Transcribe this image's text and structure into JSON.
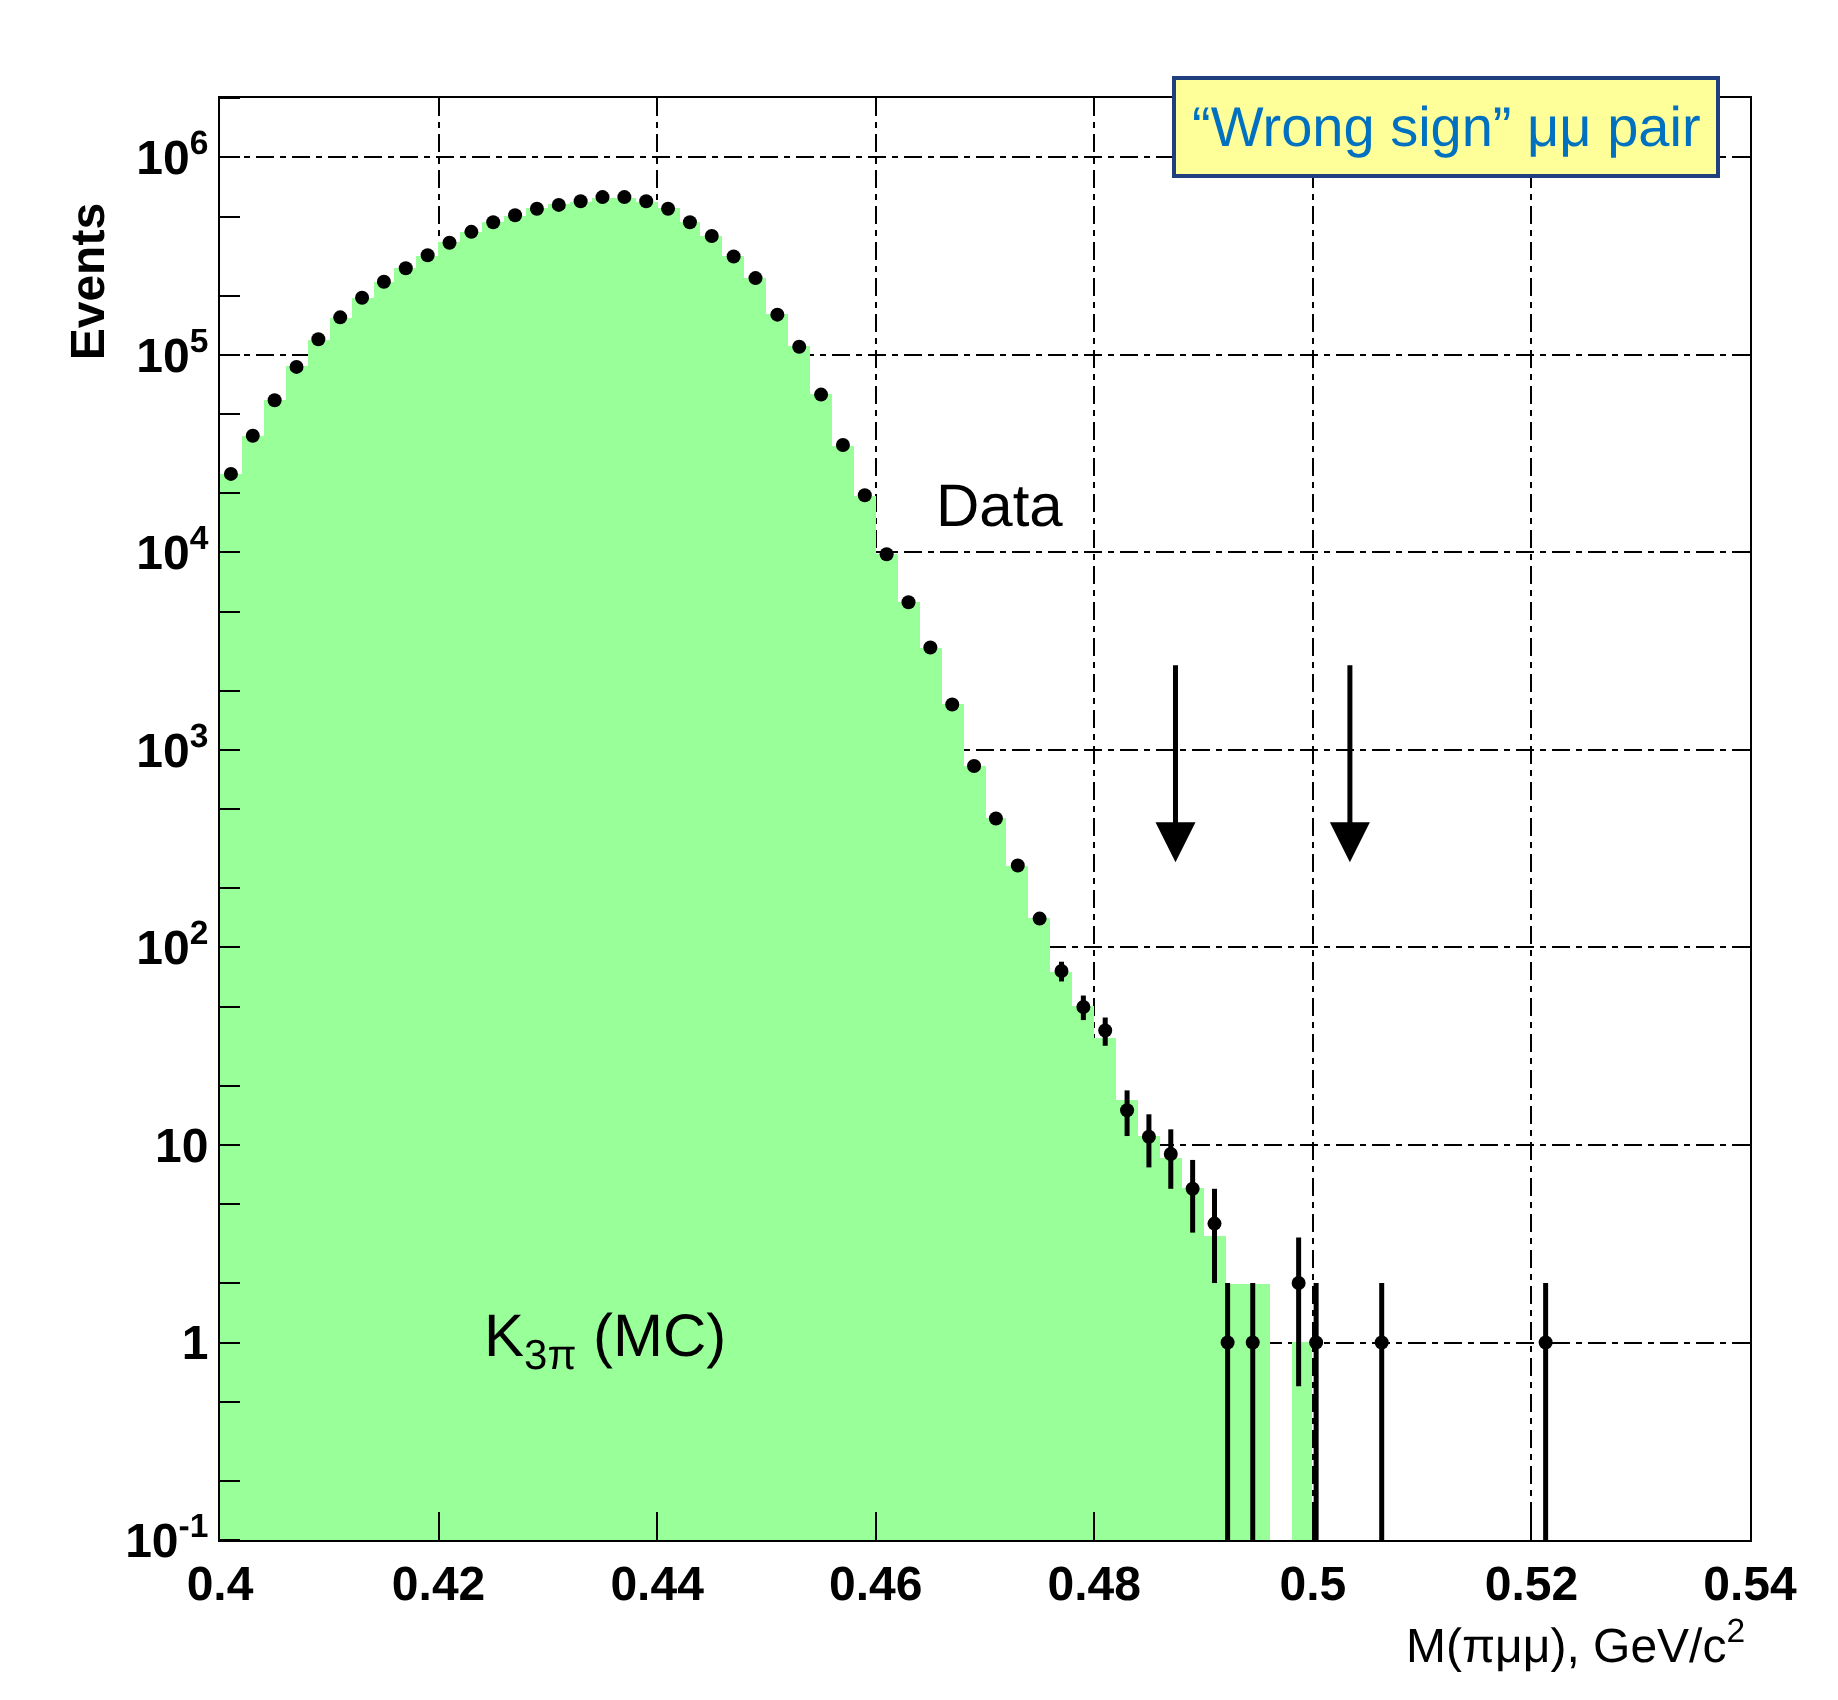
{
  "chart_data": {
    "type": "histogram",
    "xlabel": "M(πμμ), GeV/c$^{2}$",
    "ylabel": "Events",
    "bins": [
      0.4,
      0.402,
      0.404,
      0.406,
      0.408,
      0.41,
      0.412,
      0.414,
      0.416,
      0.418,
      0.42,
      0.422,
      0.424,
      0.426,
      0.428,
      0.43,
      0.432,
      0.434,
      0.436,
      0.438,
      0.44,
      0.442,
      0.444,
      0.446,
      0.448,
      0.45,
      0.452,
      0.454,
      0.456,
      0.458,
      0.46,
      0.462,
      0.464,
      0.466,
      0.468,
      0.47,
      0.472,
      0.474,
      0.476,
      0.478,
      0.48,
      0.482,
      0.484,
      0.486,
      0.488,
      0.49,
      0.492,
      0.494,
      0.496,
      0.498,
      0.5
    ],
    "series": [
      {
        "name": "K$_{3π}$ (MC)",
        "color": "#99ff99",
        "values": [
          25000,
          39000,
          59000,
          87000,
          120000,
          155000,
          195000,
          235000,
          275000,
          320000,
          370000,
          420000,
          470000,
          510000,
          550000,
          575000,
          600000,
          630000,
          630000,
          600000,
          550000,
          470000,
          400000,
          315000,
          245000,
          160000,
          110000,
          63000,
          35000,
          19500,
          9800,
          5600,
          3300,
          1700,
          830,
          450,
          260,
          140,
          76,
          50,
          35,
          17,
          11,
          8.5,
          6,
          3.5,
          2,
          2,
          null,
          1
        ]
      },
      {
        "name": "Data",
        "type": "scatter",
        "color": "#000000",
        "marker": "circle",
        "x": [
          0.401,
          0.403,
          0.405,
          0.407,
          0.409,
          0.411,
          0.413,
          0.415,
          0.417,
          0.419,
          0.421,
          0.423,
          0.425,
          0.427,
          0.429,
          0.431,
          0.433,
          0.435,
          0.437,
          0.439,
          0.441,
          0.443,
          0.445,
          0.447,
          0.449,
          0.451,
          0.453,
          0.455,
          0.457,
          0.459,
          0.461,
          0.463,
          0.465,
          0.467,
          0.469,
          0.471,
          0.473,
          0.475,
          0.477,
          0.479,
          0.481,
          0.483,
          0.485,
          0.487,
          0.489,
          0.491,
          0.4922,
          0.4945,
          0.4987,
          0.5003,
          0.5063,
          0.5213
        ],
        "values": [
          25000,
          39000,
          59000,
          87000,
          120000,
          155000,
          195000,
          235000,
          275000,
          320000,
          370000,
          420000,
          470000,
          510000,
          550000,
          575000,
          600000,
          630000,
          630000,
          600000,
          550000,
          470000,
          400000,
          315000,
          245000,
          160000,
          110000,
          63000,
          35000,
          19500,
          9800,
          5600,
          3300,
          1700,
          830,
          450,
          260,
          140,
          76,
          50,
          38,
          15,
          11,
          9,
          6,
          4,
          1,
          1,
          2,
          1,
          1,
          1
        ],
        "errors": [
          null,
          null,
          null,
          null,
          null,
          null,
          null,
          null,
          null,
          null,
          null,
          null,
          null,
          null,
          null,
          null,
          null,
          null,
          null,
          null,
          null,
          null,
          null,
          null,
          null,
          null,
          null,
          null,
          null,
          null,
          null,
          null,
          null,
          null,
          null,
          null,
          null,
          null,
          8.7,
          7.1,
          6.2,
          3.9,
          3.3,
          3,
          2.4,
          2,
          [
            0.1,
            2
          ],
          [
            0.1,
            2
          ],
          1.4,
          [
            0.1,
            2
          ],
          [
            0.1,
            2
          ],
          [
            0.1,
            2
          ]
        ]
      }
    ],
    "annotations": [
      "“Wrong sign” μμ pair"
    ],
    "xlim": [
      0.4,
      0.54
    ],
    "ylim": [
      0.1,
      2000000
    ],
    "log": true,
    "xticks": [
      0.4,
      0.42,
      0.44,
      0.46,
      0.48,
      0.5,
      0.52,
      0.54
    ],
    "yticks": [
      {
        "value": 0.1,
        "label": "10$^{-1}$"
      },
      1,
      10,
      {
        "value": 100,
        "label": "10$^{2}$"
      },
      {
        "value": 1000,
        "label": "10$^{3}$"
      },
      {
        "value": 10000,
        "label": "10$^{4}$"
      },
      {
        "value": 100000,
        "label": "10$^{5}$"
      },
      {
        "value": 1000000,
        "label": "10$^{6}$"
      }
    ],
    "grid": true
  }
}
